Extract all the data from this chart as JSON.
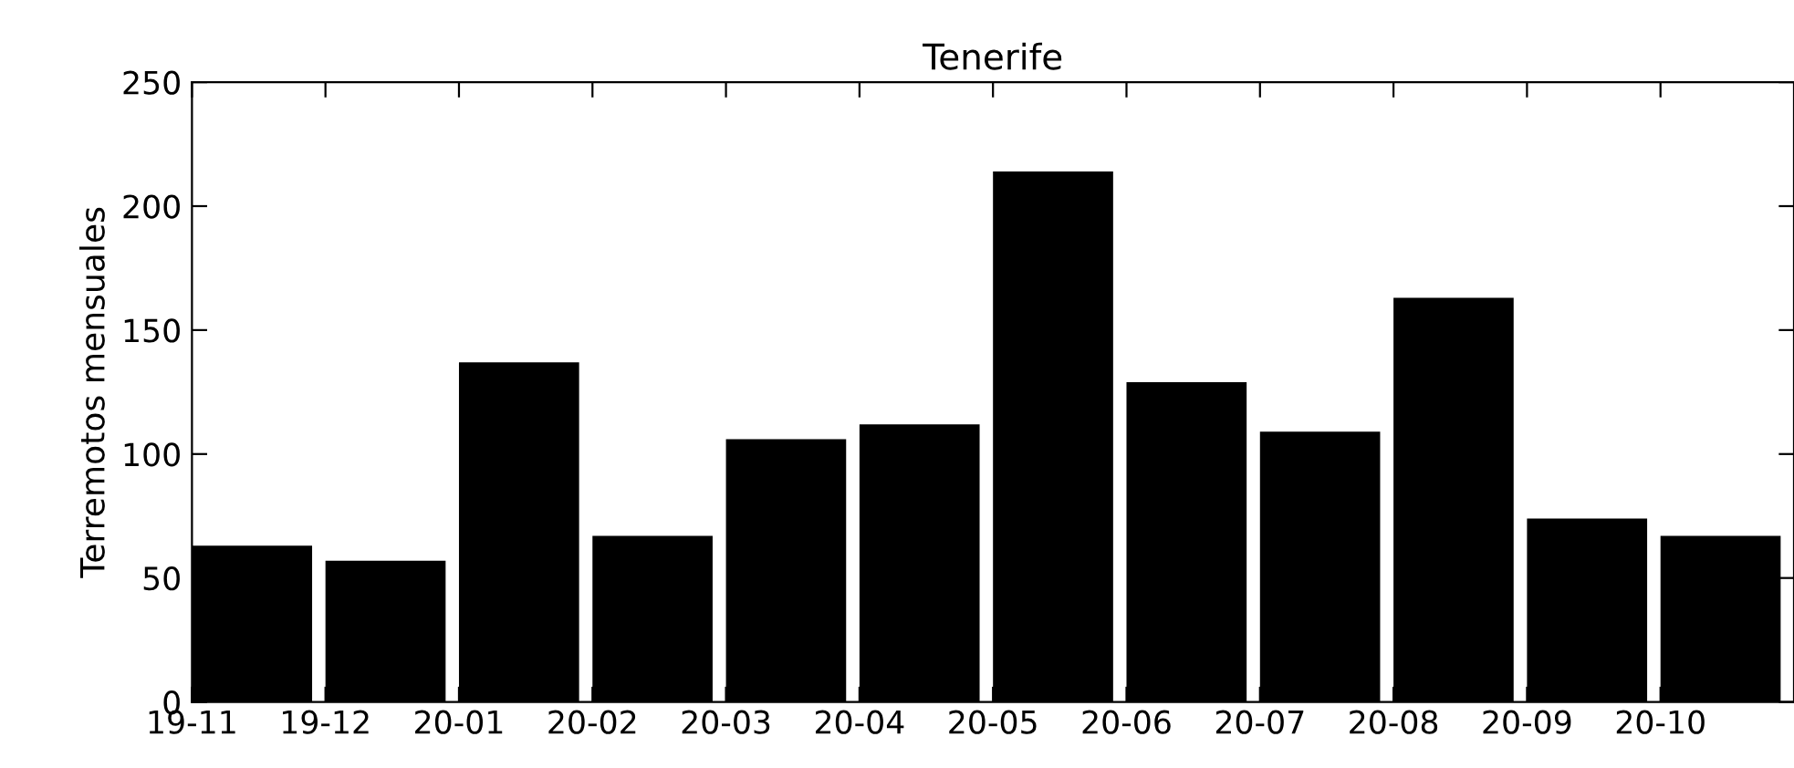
{
  "chart_data": {
    "type": "bar",
    "title": "Tenerife",
    "ylabel": "Terremotos mensuales",
    "categories": [
      "19-11",
      "19-12",
      "20-01",
      "20-02",
      "20-03",
      "20-04",
      "20-05",
      "20-06",
      "20-07",
      "20-08",
      "20-09",
      "20-10"
    ],
    "values": [
      63,
      57,
      137,
      67,
      106,
      112,
      214,
      129,
      109,
      163,
      74,
      67
    ],
    "color": "#000000",
    "ylim": [
      0,
      250
    ],
    "yticks": [
      0,
      50,
      100,
      150,
      200,
      250
    ],
    "grid": false
  }
}
